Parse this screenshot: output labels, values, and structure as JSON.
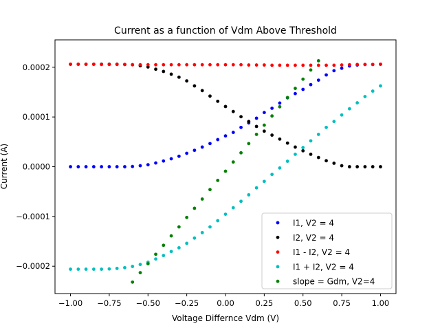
{
  "chart_data": {
    "type": "scatter",
    "title": "Current as a function of Vdm Above Threshold",
    "xlabel": "Voltage Differnce Vdm (V)",
    "ylabel": "Current (A)",
    "xlim": [
      -1.1,
      1.1
    ],
    "ylim": [
      -0.000255,
      0.000255
    ],
    "xticks": [
      -1.0,
      -0.75,
      -0.5,
      -0.25,
      0.0,
      0.25,
      0.5,
      0.75,
      1.0
    ],
    "xtick_labels": [
      "−1.00",
      "−0.75",
      "−0.50",
      "−0.25",
      "0.00",
      "0.25",
      "0.50",
      "0.75",
      "1.00"
    ],
    "yticks": [
      -0.0002,
      -0.0001,
      0.0,
      0.0001,
      0.0002
    ],
    "ytick_labels": [
      "−0.0002",
      "−0.0001",
      "0.0000",
      "0.0001",
      "0.0002"
    ],
    "grid": false,
    "legend_position": "lower-right",
    "sampling": {
      "x_start": -1.0,
      "x_end": 1.0,
      "count": 41
    },
    "series": [
      {
        "name": "I1, V2 = 4",
        "color": "#0000ff",
        "y": [
          0.0,
          0.0,
          0.0,
          0.0,
          0.0,
          0.0,
          0.0,
          0.0,
          5e-07,
          2e-06,
          4e-06,
          7.5e-06,
          1.15e-05,
          1.6e-05,
          2.1e-05,
          2.7e-05,
          3.3e-05,
          3.95e-05,
          4.65e-05,
          5.45e-05,
          6.2e-05,
          6.9e-05,
          7.9e-05,
          8.8e-05,
          9.75e-05,
          0.000109,
          0.0001175,
          0.000128,
          0.0001385,
          0.000147,
          0.0001555,
          0.000165,
          0.000174,
          0.0001845,
          0.000193,
          0.000198,
          0.0002025,
          0.0002045,
          0.0002055,
          0.0002055,
          0.000206
        ]
      },
      {
        "name": "I2, V2 = 4",
        "color": "#000000",
        "y": [
          0.000206,
          0.000206,
          0.000206,
          0.000206,
          0.000206,
          0.000206,
          0.000206,
          0.0002055,
          0.000205,
          0.000203,
          0.0002005,
          0.000196,
          0.0001915,
          0.000186,
          0.00018,
          0.0001725,
          0.0001625,
          0.000153,
          0.000142,
          0.0001315,
          0.000121,
          0.000111,
          0.0001005,
          9.1e-05,
          8.1e-05,
          7.15e-05,
          6.35e-05,
          5.55e-05,
          4.75e-05,
          3.95e-05,
          3.2e-05,
          2.5e-05,
          1.85e-05,
          1.2e-05,
          7e-06,
          2e-06,
          0.0,
          0.0,
          0.0,
          0.0,
          0.0
        ]
      },
      {
        "name": "I1 - I2, V2 = 4",
        "color": "#ff0000",
        "y": [
          0.000206,
          0.000206,
          0.000206,
          0.000206,
          0.0002055,
          0.0002055,
          0.0002055,
          0.0002055,
          0.000205,
          0.000205,
          0.000205,
          0.000205,
          0.000205,
          0.000205,
          0.000205,
          0.000205,
          0.000205,
          0.000205,
          0.000205,
          0.000205,
          0.000205,
          0.000205,
          0.000205,
          0.0002045,
          0.0002045,
          0.0002045,
          0.000204,
          0.000204,
          0.000204,
          0.000204,
          0.000204,
          0.000204,
          0.000204,
          0.000204,
          0.000204,
          0.0002045,
          0.000205,
          0.0002055,
          0.0002055,
          0.0002055,
          0.000206
        ]
      },
      {
        "name": "I1 + I2, V2 = 4",
        "color": "#00bfbf",
        "y": [
          -0.000206,
          -0.000206,
          -0.000206,
          -0.000206,
          -0.000206,
          -0.0002055,
          -0.0002045,
          -0.000203,
          -0.0002005,
          -0.0001965,
          -0.000192,
          -0.0001855,
          -0.0001785,
          -0.0001705,
          -0.000163,
          -0.000154,
          -0.0001435,
          -0.0001325,
          -0.000121,
          -0.0001085,
          -9.55e-05,
          -8.25e-05,
          -6.95e-05,
          -5.65e-05,
          -4.25e-05,
          -2.95e-05,
          -1.55e-05,
          -2.5e-06,
          1.1e-05,
          2.5e-05,
          3.85e-05,
          5.2e-05,
          6.5e-05,
          7.9e-05,
          9.1e-05,
          0.000104,
          0.0001165,
          0.0001285,
          0.000141,
          0.000152,
          0.0001625
        ]
      },
      {
        "name": "slope = Gdm, V2=4",
        "color": "#008000",
        "x": [
          -0.6,
          -0.55,
          -0.5,
          -0.45,
          -0.4,
          -0.35,
          -0.3,
          -0.25,
          -0.2,
          -0.15,
          -0.1,
          -0.05,
          0.0,
          0.05,
          0.1,
          0.15,
          0.2,
          0.25,
          0.3,
          0.35,
          0.4,
          0.45,
          0.5,
          0.55,
          0.6
        ],
        "y": [
          -0.000232,
          -0.000213,
          -0.000195,
          -0.000176,
          -0.000158,
          -0.000139,
          -0.000121,
          -0.000102,
          -8.35e-05,
          -6.5e-05,
          -4.6e-05,
          -2.75e-05,
          -9e-06,
          9.5e-06,
          2.8e-05,
          4.65e-05,
          6.5e-05,
          8.35e-05,
          0.000102,
          0.0001205,
          0.000139,
          0.0001575,
          0.000176,
          0.0001945,
          0.000213
        ]
      }
    ]
  }
}
